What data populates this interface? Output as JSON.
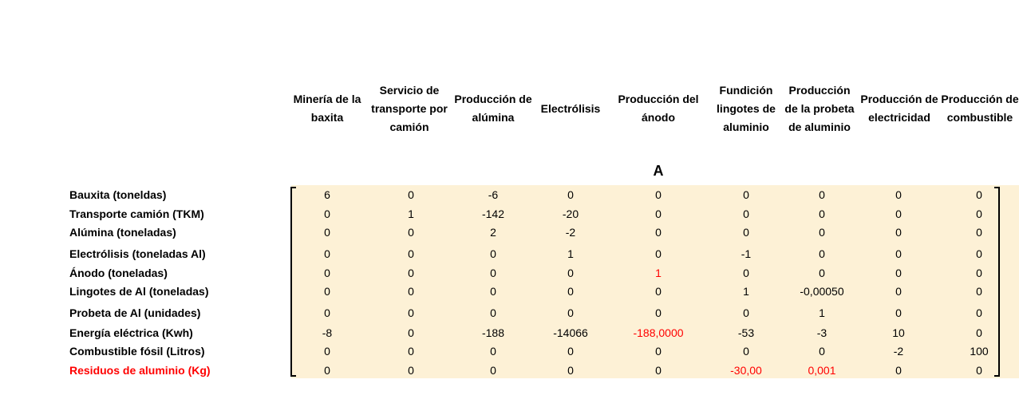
{
  "matrix": {
    "title": "A",
    "columns": [
      "Minería de la baxita",
      "Servicio de transporte por camión",
      "Producción de alúmina",
      "Electrólisis",
      "Producción del ánodo",
      "Fundición lingotes de aluminio",
      "Producción de la probeta de aluminio",
      "Producción de electricidad",
      "Producción de combustible"
    ],
    "rows": [
      {
        "label": "Bauxita (toneldas)",
        "values": [
          "6",
          "0",
          "-6",
          "0",
          "0",
          "0",
          "0",
          "0",
          "0"
        ]
      },
      {
        "label": "Transporte camión (TKM)",
        "values": [
          "0",
          "1",
          "-142",
          "-20",
          "0",
          "0",
          "0",
          "0",
          "0"
        ]
      },
      {
        "label": "Alúmina (toneladas)",
        "values": [
          "0",
          "0",
          "2",
          "-2",
          "0",
          "0",
          "0",
          "0",
          "0"
        ]
      },
      {
        "label": "Electrólisis (toneladas Al)",
        "values": [
          "0",
          "0",
          "0",
          "1",
          "0",
          "-1",
          "0",
          "0",
          "0"
        ]
      },
      {
        "label": "Ánodo (toneladas)",
        "values": [
          "0",
          "0",
          "0",
          "0",
          "1",
          "0",
          "0",
          "0",
          "0"
        ]
      },
      {
        "label": "Lingotes de Al (toneladas)",
        "values": [
          "0",
          "0",
          "0",
          "0",
          "0",
          "1",
          "-0,00050",
          "0",
          "0"
        ]
      },
      {
        "label": "Probeta de Al (unidades)",
        "values": [
          "0",
          "0",
          "0",
          "0",
          "0",
          "0",
          "1",
          "0",
          "0"
        ]
      },
      {
        "label": "Energía eléctrica (Kwh)",
        "values": [
          "-8",
          "0",
          "-188",
          "-14066",
          "-188,0000",
          "-53",
          "-3",
          "10",
          "0"
        ]
      },
      {
        "label": "Combustible fósil (Litros)",
        "values": [
          "0",
          "0",
          "0",
          "0",
          "0",
          "0",
          "0",
          "-2",
          "100"
        ]
      },
      {
        "label": "Residuos de aluminio (Kg)",
        "values": [
          "0",
          "0",
          "0",
          "0",
          "0",
          "-30,00",
          "0,001",
          "0",
          "0"
        ]
      }
    ],
    "colors": {
      "highlight": "#ff0000",
      "matrix_background": "#fdf1d6"
    }
  }
}
